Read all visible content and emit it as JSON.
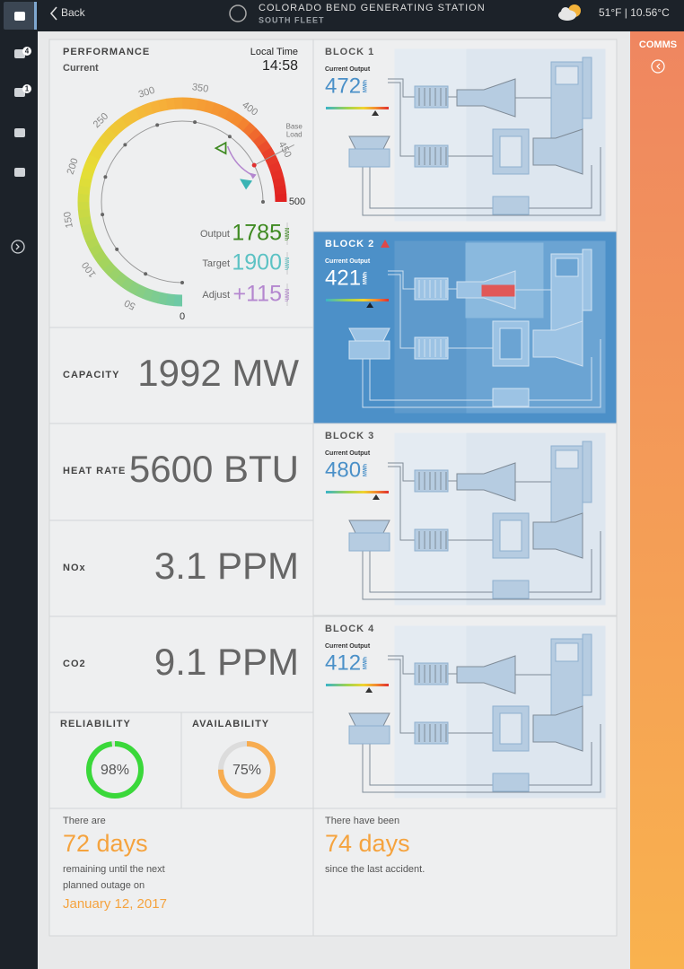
{
  "header": {
    "back": "Back",
    "title": "COLORADO BEND GENERATING STATION",
    "subtitle": "SOUTH FLEET",
    "weather": "51°F | 10.56°C"
  },
  "sidebar": {
    "alerts_badge": "4",
    "messages_badge": "1"
  },
  "comms": {
    "title": "COMMS"
  },
  "performance": {
    "title": "PERFORMANCE",
    "subtitle": "Current",
    "time_label": "Local Time",
    "time": "14:58",
    "gauge": {
      "ticks": [
        0,
        50,
        100,
        150,
        200,
        250,
        300,
        350,
        400,
        450,
        500
      ],
      "target": 400,
      "current": 470,
      "base_load": 450,
      "base_load_label": [
        "Base",
        "Load"
      ]
    },
    "unit": "MWh",
    "rows": [
      {
        "label": "Output",
        "value": "1785",
        "color": "#3f8a22"
      },
      {
        "label": "Target",
        "value": "1900",
        "color": "#5cc2c4"
      },
      {
        "label": "Adjust",
        "value": "+115",
        "color": "#b487cf"
      }
    ]
  },
  "metrics": [
    {
      "label": "CAPACITY",
      "value": "1992 MW"
    },
    {
      "label": "HEAT RATE",
      "value": "5600 BTU"
    },
    {
      "label": "NOx",
      "value": "3.1 PPM"
    },
    {
      "label": "CO2",
      "value": "9.1 PPM"
    }
  ],
  "donuts": [
    {
      "title": "RELIABILITY",
      "value": 98,
      "label": "98%",
      "color": "#3ad83a"
    },
    {
      "title": "AVAILABILITY",
      "value": 75,
      "label": "75%",
      "color": "#f7ac50"
    }
  ],
  "outage": {
    "intro": "There are",
    "days": "72 days",
    "lines": [
      "remaining until the next",
      "planned outage on"
    ],
    "date": "January 12, 2017"
  },
  "accident": {
    "intro": "There have been",
    "days": "74 days",
    "line": "since the last accident."
  },
  "blocks": {
    "output_label": "Current Output",
    "unit": "MWh",
    "indicator_range": [
      0,
      600
    ],
    "items": [
      {
        "name": "BLOCK 1",
        "output": 472,
        "alert": false
      },
      {
        "name": "BLOCK 2",
        "output": 421,
        "alert": true
      },
      {
        "name": "BLOCK 3",
        "output": 480,
        "alert": false
      },
      {
        "name": "BLOCK 4",
        "output": 412,
        "alert": false
      }
    ]
  }
}
